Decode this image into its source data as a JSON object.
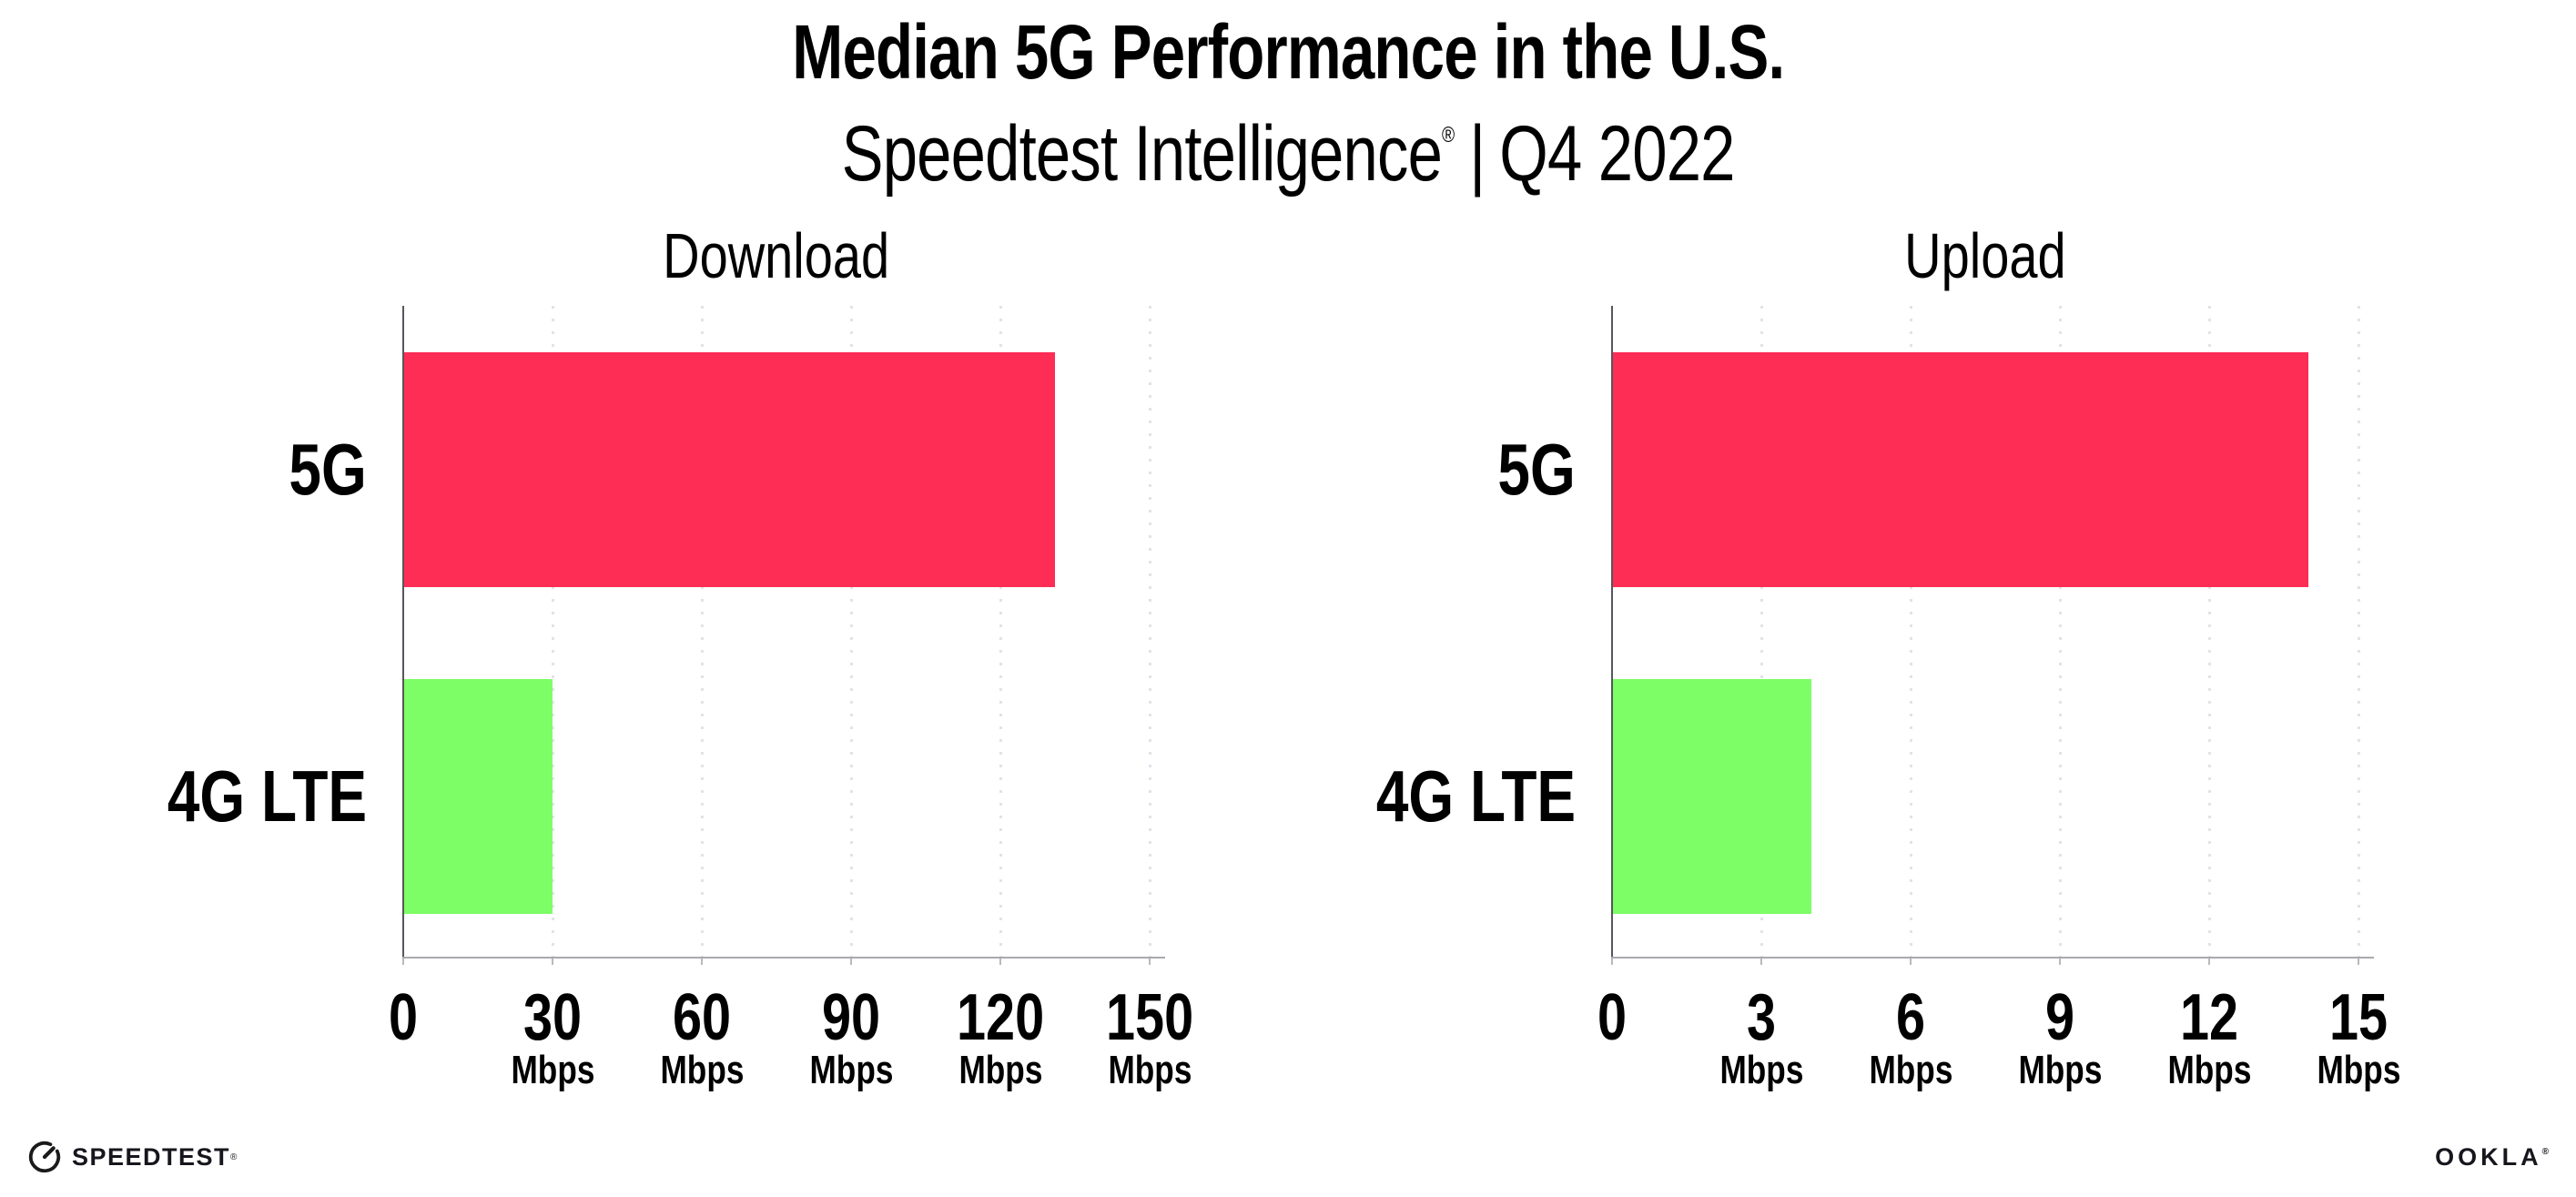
{
  "title": "Median 5G Performance in the U.S.",
  "subtitle": {
    "product": "Speedtest Intelligence",
    "registered_mark": "®",
    "separator": "|",
    "period": "Q4 2022"
  },
  "unit": "Mbps",
  "colors": {
    "bar_5g": "#fd2d55",
    "bar_4g_lte": "#7dfd66",
    "gridline": "#e2e2ea",
    "x_axis": "#a9a9ae",
    "y_axis": "#56565c",
    "text": "#000000"
  },
  "chart_data": [
    {
      "type": "bar",
      "orientation": "horizontal",
      "title": "Download",
      "categories": [
        "5G",
        "4G LTE"
      ],
      "values": [
        131,
        30
      ],
      "unit": "Mbps",
      "xlim": [
        0,
        150
      ],
      "xticks": [
        0,
        30,
        60,
        90,
        120,
        150
      ],
      "xtick_unit_label": "Mbps",
      "grid": "vertical-dotted",
      "legend": "none",
      "bar_colors": [
        "#fd2d55",
        "#7dfd66"
      ]
    },
    {
      "type": "bar",
      "orientation": "horizontal",
      "title": "Upload",
      "categories": [
        "5G",
        "4G LTE"
      ],
      "values": [
        14,
        4
      ],
      "unit": "Mbps",
      "xlim": [
        0,
        15
      ],
      "xticks": [
        0,
        3,
        6,
        9,
        12,
        15
      ],
      "xtick_unit_label": "Mbps",
      "grid": "vertical-dotted",
      "legend": "none",
      "bar_colors": [
        "#fd2d55",
        "#7dfd66"
      ]
    }
  ],
  "footer": {
    "speedtest_wordmark": "SPEEDTEST",
    "speedtest_trademark": "®",
    "speedtest_icon": "gauge-icon",
    "ookla_wordmark": "OOKLA",
    "ookla_trademark": "®"
  }
}
